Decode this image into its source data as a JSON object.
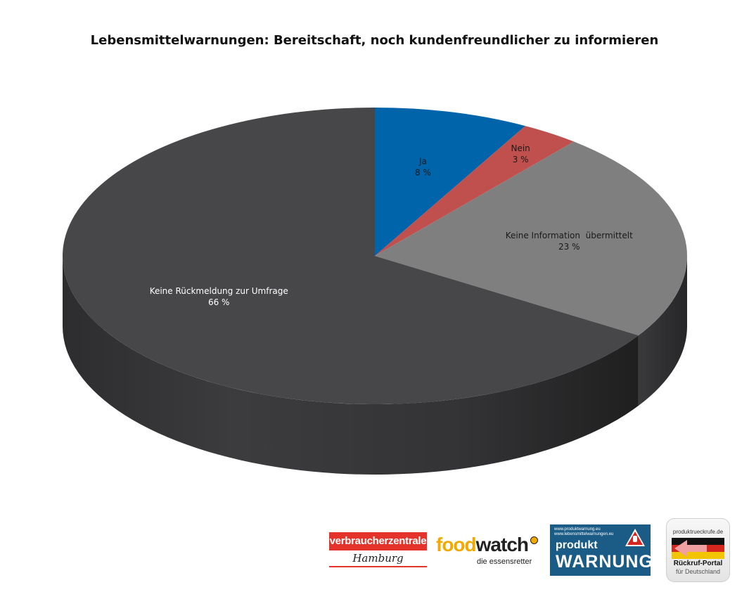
{
  "chart_data": {
    "type": "pie",
    "title": "Lebensmittelwarnungen: Bereitschaft, noch kundenfreundlicher zu informieren",
    "categories": [
      "Ja",
      "Nein",
      "Keine Information  übermittelt",
      "Keine Rückmeldung zur Umfrage"
    ],
    "values": [
      8,
      3,
      23,
      66
    ],
    "value_labels": [
      "8 %",
      "3 %",
      "23 %",
      "66 %"
    ],
    "colors": [
      "#0064aa",
      "#c0504d",
      "#7f7f7f",
      "#474749"
    ],
    "label_colors": [
      "#1a1a1a",
      "#1a1a1a",
      "#1a1a1a",
      "#ffffff"
    ],
    "legend": "none",
    "style": "3d"
  },
  "logos": {
    "verbraucherzentrale": {
      "top": "verbraucherzentrale",
      "bottom": "Hamburg"
    },
    "foodwatch": {
      "food": "food",
      "watch": "watch",
      "tagline": "die essensretter"
    },
    "produktwarnung": {
      "url1": "www.produktwarnung.eu",
      "url2": "www.lebensmittelwarnungen.eu",
      "word1": "produkt",
      "word2": "WARNUNG"
    },
    "rueckrufportal": {
      "url": "produktrueckrufe.de",
      "title": "Rückruf-Portal",
      "subtitle": "für Deutschland"
    }
  }
}
